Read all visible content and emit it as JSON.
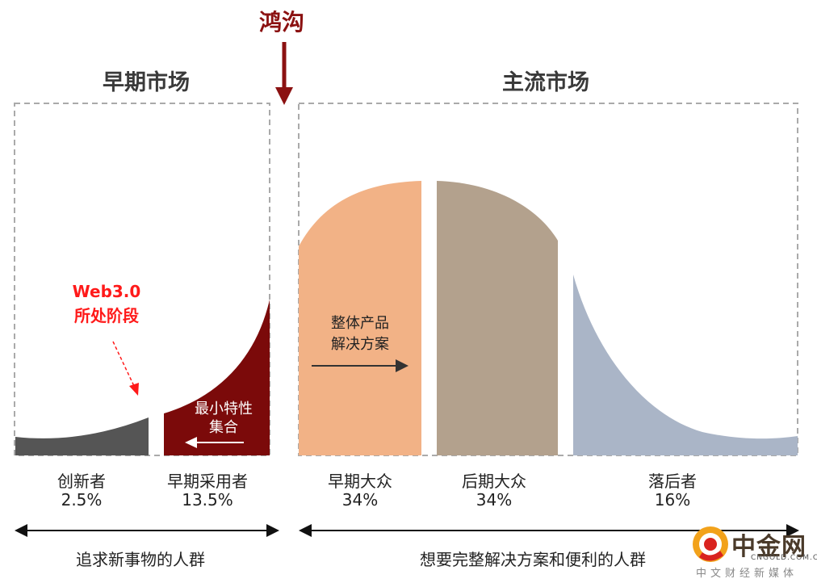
{
  "chasm_label": "鸿沟",
  "markets": {
    "early": "早期市场",
    "mainstream": "主流市场"
  },
  "segments": [
    {
      "name": "创新者",
      "percent": "2.5%",
      "color": "#555555"
    },
    {
      "name": "早期采用者",
      "percent": "13.5%",
      "color": "#7b0a0a"
    },
    {
      "name": "早期大众",
      "percent": "34%",
      "color": "#f2b286"
    },
    {
      "name": "后期大众",
      "percent": "34%",
      "color": "#b3a18d"
    },
    {
      "name": "落后者",
      "percent": "16%",
      "color": "#aab5c7"
    }
  ],
  "annotations": {
    "web3_line1": "Web3.0",
    "web3_line2": "所处阶段",
    "min_line1": "最小特性",
    "min_line2": "集合",
    "whole_line1": "整体产品",
    "whole_line2": "解决方案"
  },
  "bottom_labels": {
    "left": "追求新事物的人群",
    "right": "想要完整解决方案和便利的人群"
  },
  "logo": {
    "name": "中金网",
    "domain": "CNGOLD.COM.CN",
    "tagline": "中文财经新媒体"
  },
  "colors": {
    "chasm": "#8b1111",
    "annotation_red": "#ff1a1a",
    "dashed_border": "#aaaaaa"
  }
}
